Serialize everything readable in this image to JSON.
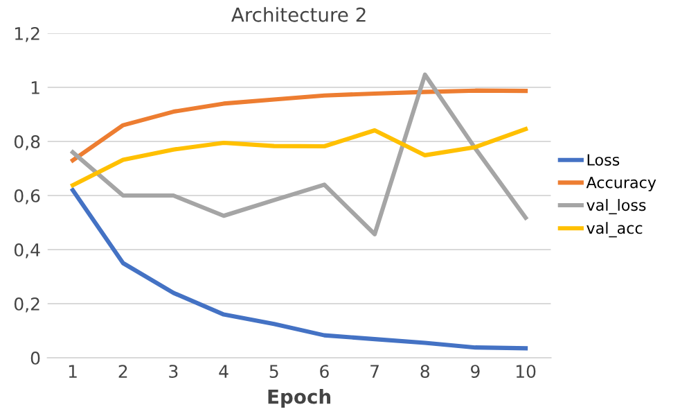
{
  "chart_data": {
    "type": "line",
    "title": "Architecture 2",
    "xlabel": "Epoch",
    "categories": [
      "1",
      "2",
      "3",
      "4",
      "5",
      "6",
      "7",
      "8",
      "9",
      "10"
    ],
    "series": [
      {
        "name": "Loss",
        "color": "#4472c4",
        "values": [
          0.62,
          0.35,
          0.24,
          0.16,
          0.125,
          0.083,
          0.069,
          0.055,
          0.038,
          0.035
        ]
      },
      {
        "name": "Accuracy",
        "color": "#ed7d31",
        "values": [
          0.73,
          0.86,
          0.91,
          0.94,
          0.955,
          0.97,
          0.977,
          0.983,
          0.988,
          0.987
        ]
      },
      {
        "name": "val_loss",
        "color": "#a5a5a5",
        "values": [
          0.76,
          0.6,
          0.6,
          0.525,
          0.583,
          0.64,
          0.457,
          1.047,
          0.774,
          0.518
        ]
      },
      {
        "name": "val_acc",
        "color": "#ffc000",
        "values": [
          0.638,
          0.732,
          0.77,
          0.795,
          0.783,
          0.782,
          0.841,
          0.749,
          0.779,
          0.846
        ]
      }
    ],
    "ylim": [
      0,
      1.2
    ],
    "yticks": [
      0,
      {
        "value": 0.2,
        "label": "0,2"
      },
      {
        "value": 0.4,
        "label": "0,4"
      },
      {
        "value": 0.6,
        "label": "0,6"
      },
      {
        "value": 0.8,
        "label": "0,8"
      },
      1,
      {
        "value": 1.2,
        "label": "1,2"
      }
    ],
    "grid": "y",
    "legend": "right",
    "marker": "none",
    "line_style": "solid"
  }
}
